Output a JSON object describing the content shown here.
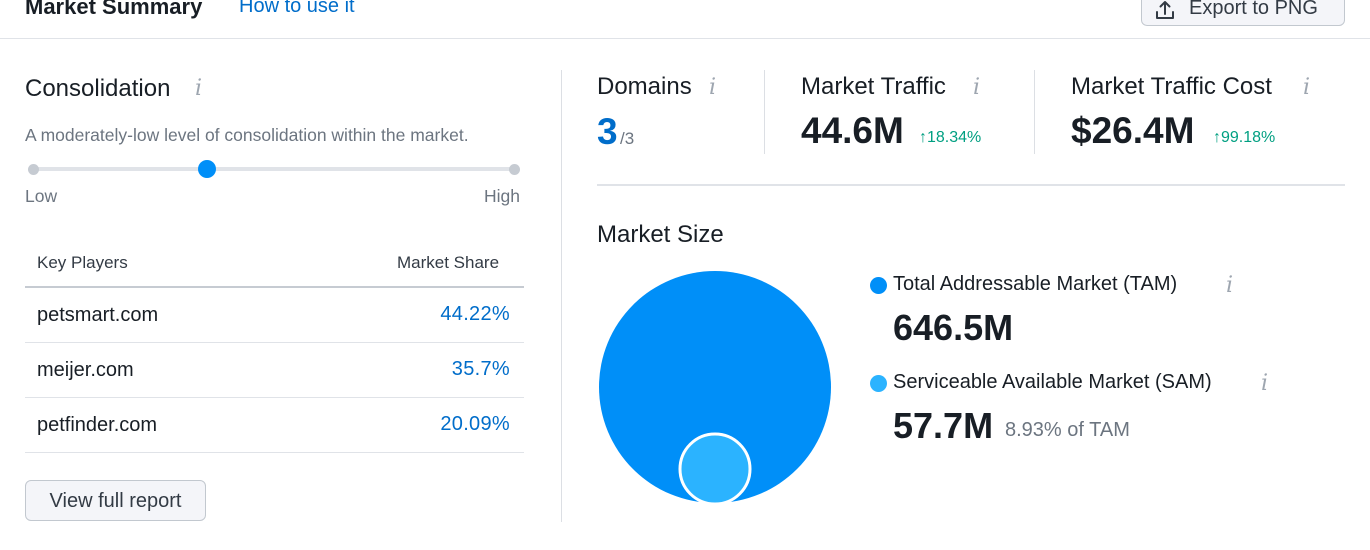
{
  "header": {
    "title": "Market Summary",
    "help_link": "How to use it",
    "export_label": "Export to PNG"
  },
  "consolidation": {
    "title": "Consolidation",
    "info_glyph": "i",
    "description": "A moderately-low level of consolidation within the market.",
    "slider_low": "Low",
    "slider_high": "High",
    "level_fraction": 0.36
  },
  "key_players": {
    "col_player": "Key Players",
    "col_share": "Market Share",
    "rows": [
      {
        "domain": "petsmart.com",
        "share": "44.22%"
      },
      {
        "domain": "meijer.com",
        "share": "35.7%"
      },
      {
        "domain": "petfinder.com",
        "share": "20.09%"
      }
    ],
    "view_report_label": "View full report"
  },
  "metrics": {
    "domains": {
      "title": "Domains",
      "value": "3",
      "total": "/3"
    },
    "traffic": {
      "title": "Market Traffic",
      "value": "44.6M",
      "growth": "↑18.34%"
    },
    "traffic_cost": {
      "title": "Market Traffic Cost",
      "value": "$26.4M",
      "growth": "↑99.18%"
    }
  },
  "market_size": {
    "title": "Market Size",
    "tam": {
      "label": "Total Addressable Market (TAM)",
      "value": "646.5M",
      "color": "#008ff8"
    },
    "sam": {
      "label": "Serviceable Available Market (SAM)",
      "value": "57.7M",
      "pct_of_tam": "8.93% of TAM",
      "color": "#2bb3ff"
    }
  },
  "colors": {
    "accent": "#008ff8",
    "link": "#006dca",
    "growth": "#009f81"
  },
  "icons": [
    "upload-icon",
    "info-icon"
  ]
}
